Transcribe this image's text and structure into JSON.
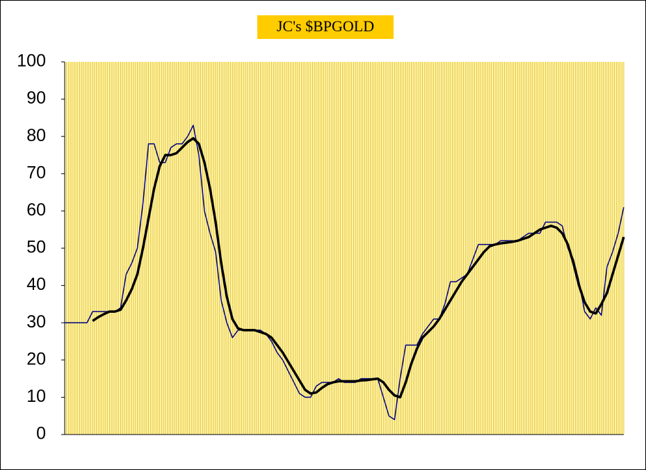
{
  "chart_data": {
    "type": "line",
    "title": "JC's $BPGOLD",
    "categories": [
      null,
      null,
      null,
      null,
      null,
      null,
      null,
      null,
      null,
      null,
      null,
      null,
      null,
      null,
      null,
      null,
      null,
      null,
      null,
      null,
      null,
      null,
      null,
      null,
      null,
      null,
      null,
      null,
      null,
      null,
      null,
      null,
      null,
      null,
      null,
      null,
      null,
      null,
      null,
      null,
      null,
      null,
      null,
      null,
      null,
      null,
      null,
      null,
      null,
      null,
      null,
      null,
      null,
      null,
      null,
      null,
      null,
      null,
      null,
      null,
      null,
      null,
      null,
      null,
      null,
      null,
      null,
      null,
      null,
      null,
      null,
      null,
      null,
      null,
      null,
      null,
      null,
      null,
      null,
      null,
      null,
      null,
      null,
      null,
      null,
      null,
      null,
      null,
      null,
      null,
      null,
      null,
      null,
      null,
      null,
      null,
      null,
      null,
      null,
      null,
      null
    ],
    "series": [
      {
        "color": "#000080",
        "width": 1.5,
        "values": [
          30,
          30,
          30,
          30,
          30,
          33,
          33,
          33,
          33,
          33,
          34,
          43,
          46,
          50,
          62,
          78,
          78,
          73,
          73,
          77,
          78,
          78,
          80,
          83,
          75,
          60,
          54,
          49,
          36,
          30,
          26,
          28,
          28,
          28,
          28,
          28,
          27,
          25,
          22,
          20,
          17,
          14,
          11,
          10,
          10,
          13,
          14,
          14,
          14,
          15,
          14,
          14,
          14,
          15,
          15,
          15,
          15,
          10,
          5,
          4,
          15,
          24,
          24,
          24,
          27,
          29,
          31,
          31,
          35,
          41,
          41,
          42,
          43,
          47,
          51,
          51,
          51,
          51,
          52,
          52,
          52,
          52,
          53,
          54,
          54,
          54,
          57,
          57,
          57,
          56,
          50,
          47,
          41,
          33,
          31,
          34,
          32,
          45,
          49,
          54,
          61
        ]
      },
      {
        "color": "#000000",
        "width": 3.5,
        "values": [
          null,
          null,
          null,
          null,
          null,
          30.5,
          31.5,
          32.3,
          33,
          33,
          33.5,
          36,
          39,
          43,
          50,
          58,
          66,
          72,
          75,
          75,
          75.5,
          77,
          78.5,
          79.5,
          78,
          73,
          66,
          57,
          46,
          37,
          31,
          28.5,
          28,
          28,
          28,
          27.5,
          27,
          26,
          24,
          22,
          19.5,
          17,
          14.5,
          12,
          11,
          11.3,
          12.5,
          13.5,
          14,
          14.3,
          14.3,
          14.3,
          14.3,
          14.5,
          14.6,
          14.8,
          15,
          14,
          12,
          10.5,
          10,
          14,
          19,
          23,
          26,
          27.5,
          29,
          31,
          33.5,
          36,
          38.5,
          41,
          43,
          45,
          47,
          49,
          50.5,
          51,
          51.3,
          51.5,
          51.7,
          52,
          52.5,
          53,
          54,
          55,
          55.5,
          56,
          55.5,
          54,
          51,
          46,
          40,
          35.5,
          33,
          32.5,
          35,
          38,
          43,
          48,
          53
        ]
      }
    ],
    "ylim": [
      0,
      100
    ],
    "yticks": [
      0,
      10,
      20,
      30,
      40,
      50,
      60,
      70,
      80,
      90,
      100
    ],
    "plot_background": "#fff8c0",
    "grid_color": "#e0b800",
    "title_background": "#ffcc00"
  }
}
